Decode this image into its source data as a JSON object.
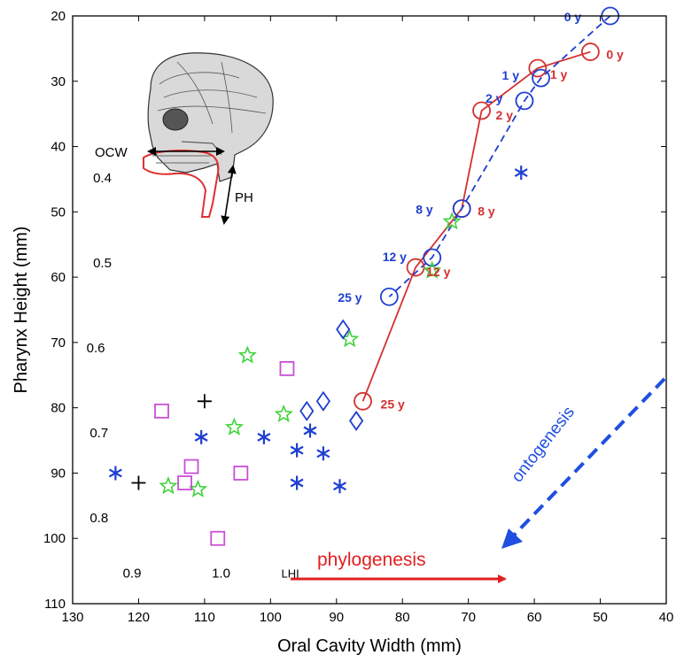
{
  "chart_data": {
    "type": "scatter",
    "xlabel": "Oral Cavity Width (mm)",
    "ylabel": "Pharynx Height (mm)",
    "xlim": [
      130,
      40
    ],
    "ylim": [
      20,
      110
    ],
    "x_reversed": true,
    "y_reversed": true,
    "x_ticks": [
      "130",
      "120",
      "110",
      "100",
      "90",
      "80",
      "70",
      "60",
      "50",
      "40"
    ],
    "y_ticks": [
      "20",
      "30",
      "40",
      "50",
      "60",
      "70",
      "80",
      "90",
      "100",
      "110"
    ],
    "grid": false,
    "reference_lines": [
      {
        "label": "0.4",
        "slope": -0.4
      },
      {
        "label": "0.5",
        "slope": -0.5
      },
      {
        "label": "0.6",
        "slope": -0.6
      },
      {
        "label": "0.7",
        "slope": -0.7
      },
      {
        "label": "0.8",
        "slope": -0.8
      },
      {
        "label": "0.9",
        "slope": -0.9
      },
      {
        "label": "1.0",
        "slope": -1.0
      },
      {
        "label": "LHI",
        "slope": -1.1
      }
    ],
    "reference_line_intercept": [
      40,
      20
    ],
    "series": [
      {
        "marker": "circle",
        "line": "solid",
        "color": "#d43030",
        "points": [
          {
            "x": 51.5,
            "y": 25.5,
            "label": "0 y"
          },
          {
            "x": 59.5,
            "y": 28.0,
            "label": "1 y"
          },
          {
            "x": 68.0,
            "y": 34.5,
            "label": "2 y"
          },
          {
            "x": 71.0,
            "y": 49.5,
            "label": "8 y"
          },
          {
            "x": 78.0,
            "y": 58.5,
            "label": "12 y"
          },
          {
            "x": 86.0,
            "y": 79.0,
            "label": "25 y"
          }
        ]
      },
      {
        "marker": "circle",
        "line": "dashed",
        "color": "#1f3fd0",
        "points": [
          {
            "x": 48.5,
            "y": 20.0,
            "label": "0 y"
          },
          {
            "x": 59.0,
            "y": 29.5,
            "label": "1 y"
          },
          {
            "x": 61.5,
            "y": 33.0,
            "label": "2 y"
          },
          {
            "x": 71.0,
            "y": 49.5,
            "label": "8 y"
          },
          {
            "x": 75.5,
            "y": 57.0,
            "label": "12 y"
          },
          {
            "x": 82.0,
            "y": 63.0,
            "label": "25 y"
          }
        ]
      },
      {
        "marker": "star",
        "color": "#3fd23a",
        "points": [
          [
            72.5,
            51.5
          ],
          [
            75.5,
            59.0
          ],
          [
            88.0,
            69.5
          ],
          [
            103.5,
            72.0
          ],
          [
            98.0,
            81.0
          ],
          [
            105.5,
            83.0
          ],
          [
            115.5,
            92.0
          ],
          [
            111.0,
            92.5
          ]
        ]
      },
      {
        "marker": "diamond",
        "color": "#1f3fd0",
        "points": [
          [
            89.0,
            68.0
          ],
          [
            94.5,
            80.5
          ],
          [
            92.0,
            79.0
          ],
          [
            87.0,
            82.0
          ]
        ]
      },
      {
        "marker": "asterisk",
        "color": "#1f3fd0",
        "points": [
          [
            62.0,
            44.0
          ],
          [
            110.5,
            84.5
          ],
          [
            101.0,
            84.5
          ],
          [
            94.0,
            83.5
          ],
          [
            96.0,
            86.5
          ],
          [
            92.0,
            87.0
          ],
          [
            96.0,
            91.5
          ],
          [
            89.5,
            92.0
          ],
          [
            123.5,
            90.0
          ]
        ]
      },
      {
        "marker": "square",
        "color": "#c94fd6",
        "points": [
          [
            97.5,
            74.0
          ],
          [
            116.5,
            80.5
          ],
          [
            112.0,
            89.0
          ],
          [
            113.0,
            91.5
          ],
          [
            104.5,
            90.0
          ],
          [
            108.0,
            100.0
          ]
        ]
      },
      {
        "marker": "plus",
        "color": "#000000",
        "points": [
          [
            110.0,
            79.0
          ],
          [
            120.0,
            91.5
          ]
        ]
      }
    ],
    "annotations": {
      "phylogenesis": "phylogenesis",
      "ontogenesis": "ontogenesis",
      "ocw": "OCW",
      "ph": "PH"
    }
  }
}
